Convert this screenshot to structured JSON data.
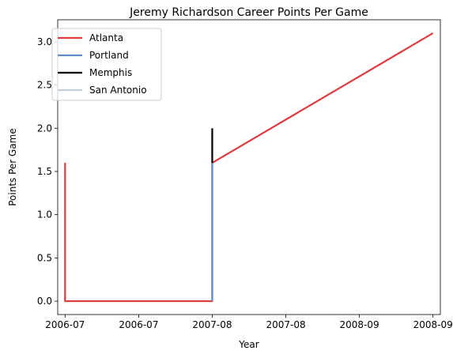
{
  "chart_data": {
    "type": "line",
    "title": "Jeremy Richardson Career Points Per Game",
    "xlabel": "Year",
    "ylabel": "Points Per Game",
    "x_tick_labels": [
      "2006-07",
      "2006-07",
      "2007-08",
      "2007-08",
      "2008-09",
      "2008-09"
    ],
    "x_tick_values": [
      0,
      1,
      2,
      3,
      4,
      5
    ],
    "y_ticks": [
      0.0,
      0.5,
      1.0,
      1.5,
      2.0,
      2.5,
      3.0
    ],
    "y_tick_labels": [
      "0.0",
      "0.5",
      "1.0",
      "1.5",
      "2.0",
      "2.5",
      "3.0"
    ],
    "xlim": [
      -0.1,
      5.1
    ],
    "ylim": [
      -0.155,
      3.255
    ],
    "grid": false,
    "legend_position": "top-left",
    "series": [
      {
        "name": "Atlanta",
        "color": "#e03c3e",
        "x": [
          0,
          0,
          2,
          2,
          5
        ],
        "y": [
          1.6,
          0.0,
          0.0,
          1.6,
          3.1
        ]
      },
      {
        "name": "Portland",
        "color": "#5f8cc2",
        "x": [
          2,
          2
        ],
        "y": [
          0.0,
          1.6
        ]
      },
      {
        "name": "Memphis",
        "color": "#000000",
        "x": [
          2,
          2
        ],
        "y": [
          1.6,
          2.0
        ]
      },
      {
        "name": "San Antonio",
        "color": "#c4ced4",
        "x": [],
        "y": []
      }
    ]
  }
}
